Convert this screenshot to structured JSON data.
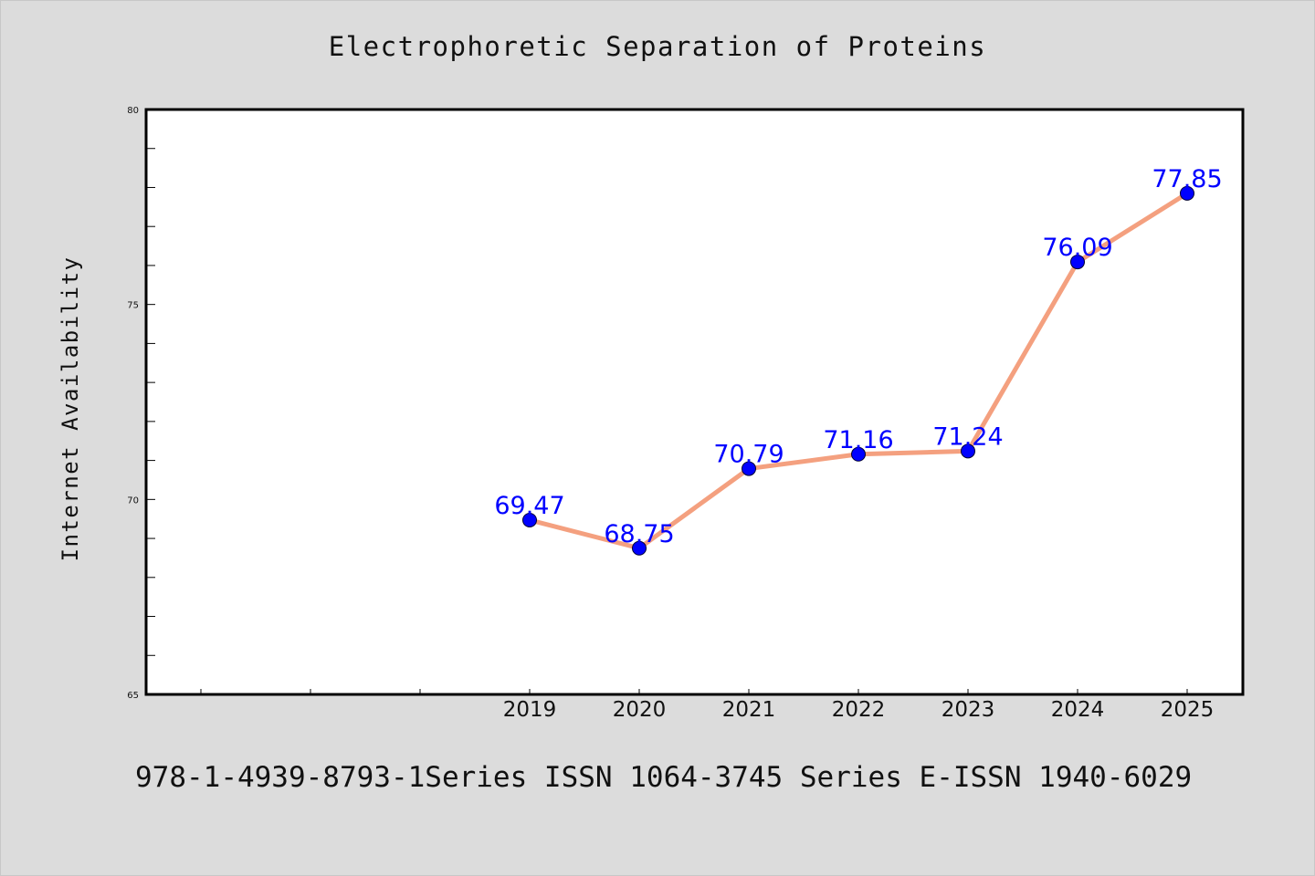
{
  "chart_data": {
    "type": "line",
    "title": "Electrophoretic Separation of Proteins",
    "ylabel": "Internet Availability",
    "xlabel": "",
    "categories": [
      "2019",
      "2020",
      "2021",
      "2022",
      "2023",
      "2024",
      "2025"
    ],
    "series": [
      {
        "values": [
          69.47,
          68.75,
          70.79,
          71.16,
          71.24,
          76.09,
          77.85
        ],
        "labels": [
          "69.47",
          "68.75",
          "70.79",
          "71.16",
          "71.24",
          "76.09",
          "77.85"
        ]
      }
    ],
    "ylim": [
      65,
      80
    ],
    "yticks": [
      "65",
      "70",
      "75",
      "80"
    ],
    "grid": false,
    "legend": "none",
    "colors": {
      "line": "#f4a07f",
      "marker": "#0000ff",
      "label": "#0000ff",
      "background": "#dcdcdc",
      "plot_background": "#ffffff"
    }
  },
  "footer_text": "978-1-4939-8793-1Series ISSN 1064-3745 Series E-ISSN 1940-6029"
}
